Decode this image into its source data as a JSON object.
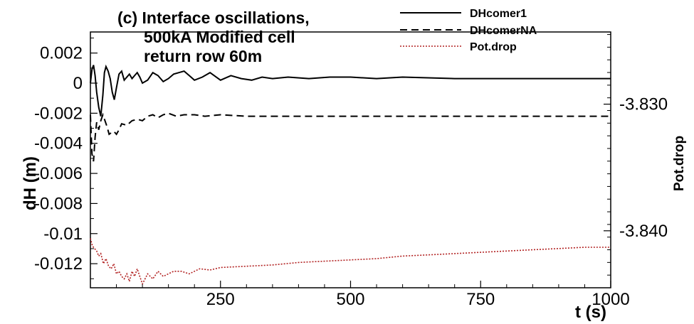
{
  "chart_data": {
    "type": "line",
    "title_lines": [
      "(c) Interface oscillations,",
      "500kA Modified cell",
      "return row 60m"
    ],
    "xlabel": "t (s)",
    "ylabel": "dH (m)",
    "ylabel_right": "Pot.drop",
    "xlim": [
      0,
      1000
    ],
    "ylim": [
      -0.0136,
      0.0034
    ],
    "ylim_right": [
      -3.8445,
      -3.8243
    ],
    "x_ticks": [
      250,
      500,
      750,
      1000
    ],
    "x_tick_labels": [
      "250",
      "500",
      "750",
      "1000"
    ],
    "y_ticks": [
      0.002,
      0,
      -0.002,
      -0.004,
      -0.006,
      -0.008,
      -0.01,
      -0.012
    ],
    "y_tick_labels": [
      "0.002",
      "0",
      "-0.002",
      "-0.004",
      "-0.006",
      "-0.008",
      "-0.01",
      "-0.012"
    ],
    "y_right_ticks": [
      -3.83,
      -3.84
    ],
    "y_right_tick_labels": [
      "-3.830",
      "-3.840"
    ],
    "grid": false,
    "legend_position": "top",
    "series": [
      {
        "name": "DHcomer1",
        "axis": "left",
        "color": "#000000",
        "style": "solid",
        "x": [
          0,
          3,
          6,
          9,
          12,
          16,
          20,
          24,
          27,
          30,
          34,
          38,
          42,
          46,
          50,
          55,
          60,
          65,
          70,
          75,
          80,
          85,
          90,
          95,
          100,
          110,
          120,
          130,
          140,
          150,
          160,
          170,
          180,
          190,
          200,
          215,
          230,
          250,
          270,
          290,
          310,
          330,
          350,
          380,
          420,
          460,
          500,
          550,
          600,
          700,
          800,
          900,
          1000
        ],
        "y": [
          0.0,
          0.0009,
          0.0012,
          0.0005,
          -0.0006,
          -0.0016,
          -0.0022,
          -0.0008,
          0.0007,
          0.0011,
          0.0008,
          0.0003,
          -0.0006,
          -0.0011,
          -0.0003,
          0.0006,
          0.0008,
          0.0002,
          0.0004,
          0.0006,
          0.0003,
          0.0005,
          0.0007,
          0.0004,
          0.0,
          0.0002,
          0.0007,
          0.0005,
          0.0001,
          0.0003,
          0.0006,
          0.0007,
          0.0008,
          0.0005,
          0.0002,
          0.0004,
          0.0007,
          0.0002,
          0.0005,
          0.0003,
          0.0002,
          0.0004,
          0.0003,
          0.0004,
          0.0003,
          0.0004,
          0.0004,
          0.0003,
          0.0004,
          0.0003,
          0.0003,
          0.0003,
          0.0003
        ]
      },
      {
        "name": "DHcomerNA",
        "axis": "left",
        "color": "#000000",
        "style": "dashed",
        "x": [
          0,
          3,
          6,
          9,
          12,
          16,
          20,
          24,
          28,
          32,
          36,
          40,
          45,
          50,
          55,
          60,
          70,
          80,
          90,
          100,
          110,
          120,
          130,
          140,
          150,
          165,
          180,
          200,
          220,
          250,
          300,
          350,
          400,
          500,
          600,
          700,
          800,
          900,
          1000
        ],
        "y": [
          -0.0021,
          -0.0047,
          -0.0052,
          -0.0036,
          -0.0026,
          -0.0031,
          -0.0025,
          -0.0021,
          -0.0025,
          -0.0029,
          -0.0034,
          -0.0033,
          -0.0032,
          -0.0034,
          -0.0031,
          -0.0027,
          -0.0028,
          -0.0025,
          -0.0024,
          -0.0025,
          -0.0022,
          -0.0021,
          -0.0023,
          -0.0021,
          -0.002,
          -0.0022,
          -0.0021,
          -0.0021,
          -0.0022,
          -0.0021,
          -0.0022,
          -0.0022,
          -0.0022,
          -0.0022,
          -0.0022,
          -0.0022,
          -0.0022,
          -0.0022,
          -0.0022
        ]
      },
      {
        "name": "Pot.drop",
        "axis": "right",
        "color": "#b22222",
        "style": "dotted",
        "x": [
          0,
          4,
          8,
          12,
          16,
          20,
          25,
          30,
          35,
          40,
          45,
          50,
          55,
          60,
          65,
          70,
          75,
          80,
          85,
          90,
          95,
          100,
          110,
          120,
          130,
          140,
          150,
          160,
          175,
          190,
          210,
          230,
          250,
          300,
          350,
          400,
          450,
          500,
          550,
          600,
          650,
          700,
          750,
          800,
          850,
          900,
          950,
          1000
        ],
        "y": [
          -3.8406,
          -3.8412,
          -3.8414,
          -3.8416,
          -3.842,
          -3.8418,
          -3.8426,
          -3.8422,
          -3.8428,
          -3.843,
          -3.8426,
          -3.8434,
          -3.8432,
          -3.8436,
          -3.8438,
          -3.8434,
          -3.844,
          -3.8432,
          -3.8436,
          -3.843,
          -3.8436,
          -3.8442,
          -3.8434,
          -3.8438,
          -3.8432,
          -3.8436,
          -3.8434,
          -3.8432,
          -3.8432,
          -3.8434,
          -3.843,
          -3.8431,
          -3.8429,
          -3.8428,
          -3.8427,
          -3.8425,
          -3.8424,
          -3.8423,
          -3.8422,
          -3.842,
          -3.8419,
          -3.8418,
          -3.8417,
          -3.8416,
          -3.8415,
          -3.8414,
          -3.8413,
          -3.8413
        ]
      }
    ]
  }
}
